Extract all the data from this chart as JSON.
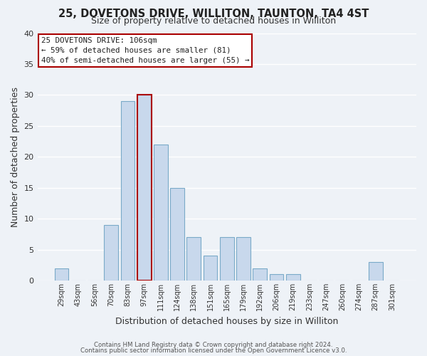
{
  "title": "25, DOVETONS DRIVE, WILLITON, TAUNTON, TA4 4ST",
  "subtitle": "Size of property relative to detached houses in Williton",
  "xlabel": "Distribution of detached houses by size in Williton",
  "ylabel": "Number of detached properties",
  "bar_labels": [
    "29sqm",
    "43sqm",
    "56sqm",
    "70sqm",
    "83sqm",
    "97sqm",
    "111sqm",
    "124sqm",
    "138sqm",
    "151sqm",
    "165sqm",
    "179sqm",
    "192sqm",
    "206sqm",
    "219sqm",
    "233sqm",
    "247sqm",
    "260sqm",
    "274sqm",
    "287sqm",
    "301sqm"
  ],
  "bar_values": [
    2,
    0,
    0,
    9,
    29,
    30,
    22,
    15,
    7,
    4,
    7,
    7,
    2,
    1,
    1,
    0,
    0,
    0,
    0,
    3,
    0
  ],
  "bar_color": "#c8d8ec",
  "bar_edge_color": "#7aaac8",
  "highlight_bar_index": 5,
  "highlight_edge_color": "#aa0000",
  "ylim": [
    0,
    40
  ],
  "yticks": [
    0,
    5,
    10,
    15,
    20,
    25,
    30,
    35,
    40
  ],
  "annotation_line1": "25 DOVETONS DRIVE: 106sqm",
  "annotation_line2": "← 59% of detached houses are smaller (81)",
  "annotation_line3": "40% of semi-detached houses are larger (55) →",
  "annotation_box_color": "#ffffff",
  "annotation_box_edge": "#aa0000",
  "footer1": "Contains HM Land Registry data © Crown copyright and database right 2024.",
  "footer2": "Contains public sector information licensed under the Open Government Licence v3.0.",
  "background_color": "#eef2f7",
  "grid_color": "#ffffff",
  "title_fontsize": 10.5,
  "subtitle_fontsize": 9
}
